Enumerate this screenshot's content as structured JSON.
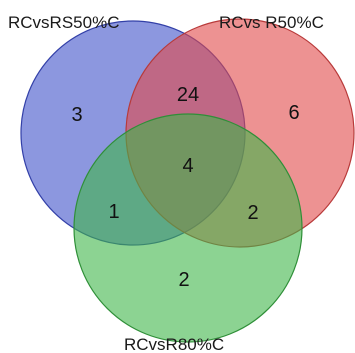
{
  "sets": [
    {
      "key": "a",
      "label": "RCvsRS50%C",
      "color": "#3f51c9"
    },
    {
      "key": "b",
      "label": "RCvs R50%C",
      "color": "#e14a4a"
    },
    {
      "key": "c",
      "label": "RCvsR80%C",
      "color": "#3fb54a"
    }
  ],
  "regions": {
    "a_only": "3",
    "b_only": "6",
    "c_only": "2",
    "ab": "24",
    "ac": "1",
    "bc": "2",
    "abc": "4"
  }
}
